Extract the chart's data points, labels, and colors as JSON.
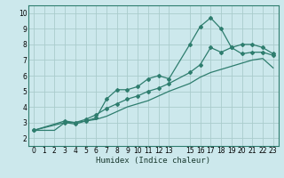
{
  "xlabel": "Humidex (Indice chaleur)",
  "bg_color": "#cce8ec",
  "grid_color": "#aacccc",
  "line_color": "#2e7d6e",
  "xlim": [
    -0.5,
    23.5
  ],
  "ylim": [
    1.5,
    10.5
  ],
  "xticks": [
    0,
    1,
    2,
    3,
    4,
    5,
    6,
    7,
    8,
    9,
    10,
    11,
    12,
    13,
    15,
    16,
    17,
    18,
    19,
    20,
    21,
    22,
    23
  ],
  "yticks": [
    2,
    3,
    4,
    5,
    6,
    7,
    8,
    9,
    10
  ],
  "line1_x": [
    0,
    2,
    3,
    4,
    5,
    6,
    7,
    8,
    9,
    10,
    11,
    12,
    13,
    15,
    16,
    17,
    18,
    19,
    20,
    21,
    22,
    23
  ],
  "line1_y": [
    2.5,
    2.5,
    3.0,
    3.0,
    3.1,
    3.2,
    3.4,
    3.7,
    4.0,
    4.2,
    4.4,
    4.7,
    5.0,
    5.5,
    5.9,
    6.2,
    6.4,
    6.6,
    6.8,
    7.0,
    7.1,
    6.5
  ],
  "line2_x": [
    0,
    3,
    4,
    5,
    6,
    7,
    8,
    9,
    10,
    11,
    12,
    13,
    15,
    16,
    17,
    18,
    19,
    20,
    21,
    22,
    23
  ],
  "line2_y": [
    2.5,
    3.0,
    2.9,
    3.1,
    3.3,
    4.5,
    5.1,
    5.1,
    5.3,
    5.8,
    6.0,
    5.8,
    8.0,
    9.15,
    9.7,
    9.0,
    7.8,
    7.4,
    7.5,
    7.5,
    7.3
  ],
  "line3_x": [
    0,
    3,
    4,
    5,
    6,
    7,
    8,
    9,
    10,
    11,
    12,
    13,
    15,
    16,
    17,
    18,
    19,
    20,
    21,
    22,
    23
  ],
  "line3_y": [
    2.5,
    3.1,
    3.0,
    3.2,
    3.5,
    3.9,
    4.2,
    4.5,
    4.7,
    5.0,
    5.2,
    5.5,
    6.2,
    6.7,
    7.8,
    7.5,
    7.8,
    8.0,
    8.0,
    7.8,
    7.4
  ]
}
